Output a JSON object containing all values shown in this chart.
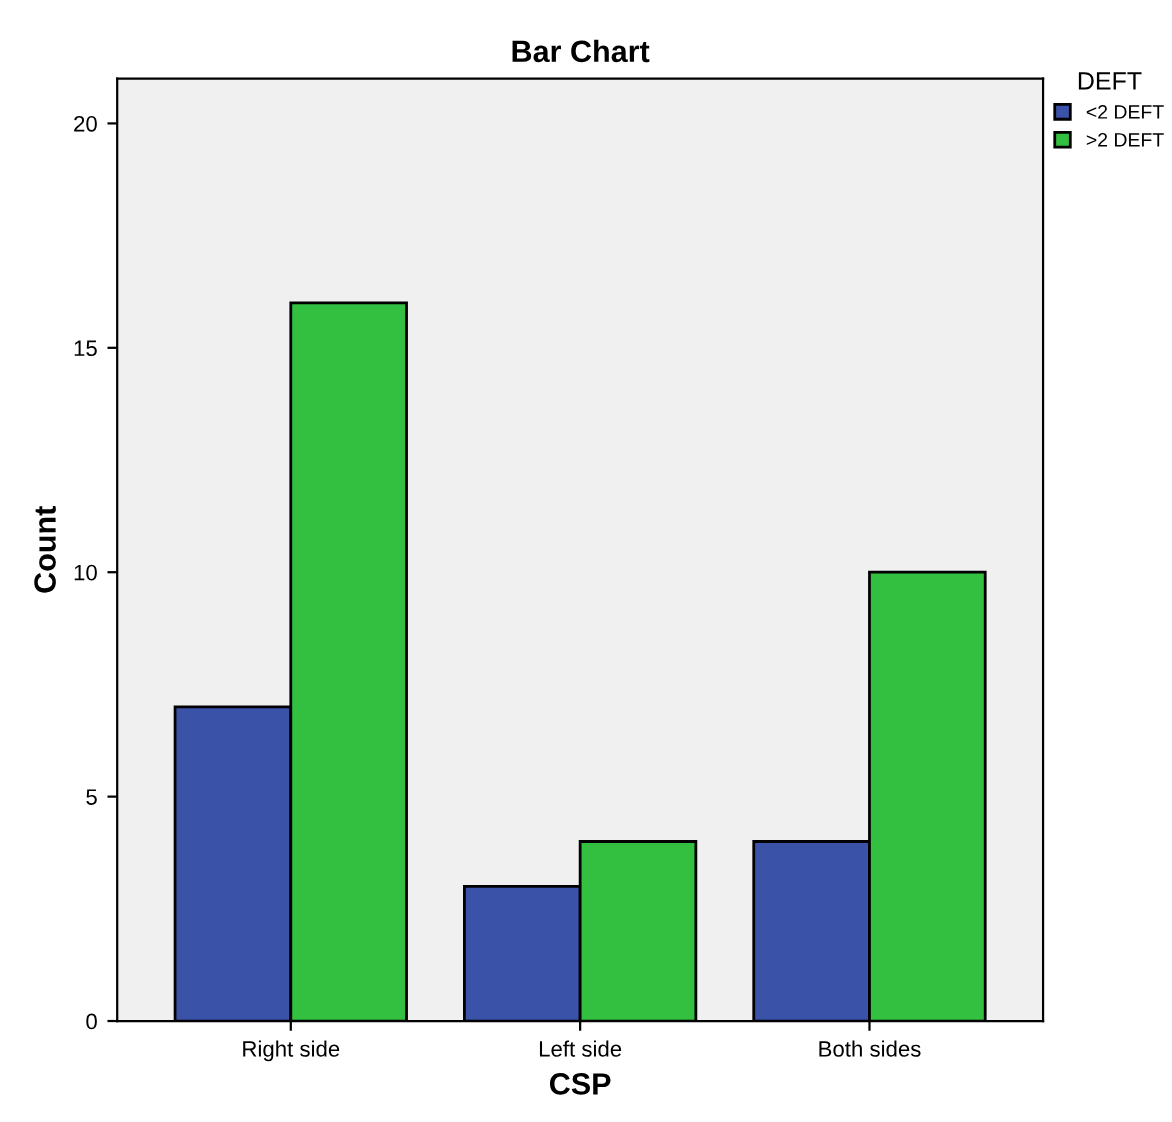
{
  "chart_data": {
    "type": "bar",
    "title": "Bar Chart",
    "xlabel": "CSP",
    "ylabel": "Count",
    "legend_title": "DEFT",
    "categories": [
      "Right side",
      "Left side",
      "Both sides"
    ],
    "series": [
      {
        "name": "<2 DEFT",
        "color": "#3b52a9",
        "values": [
          7,
          3,
          4
        ]
      },
      {
        "name": ">2 DEFT",
        "color": "#33bf3f",
        "values": [
          16,
          4,
          10
        ]
      }
    ],
    "ylim": [
      0,
      21
    ],
    "yticks": [
      0,
      5,
      10,
      15,
      20
    ],
    "grid": false,
    "legend": "top right"
  }
}
